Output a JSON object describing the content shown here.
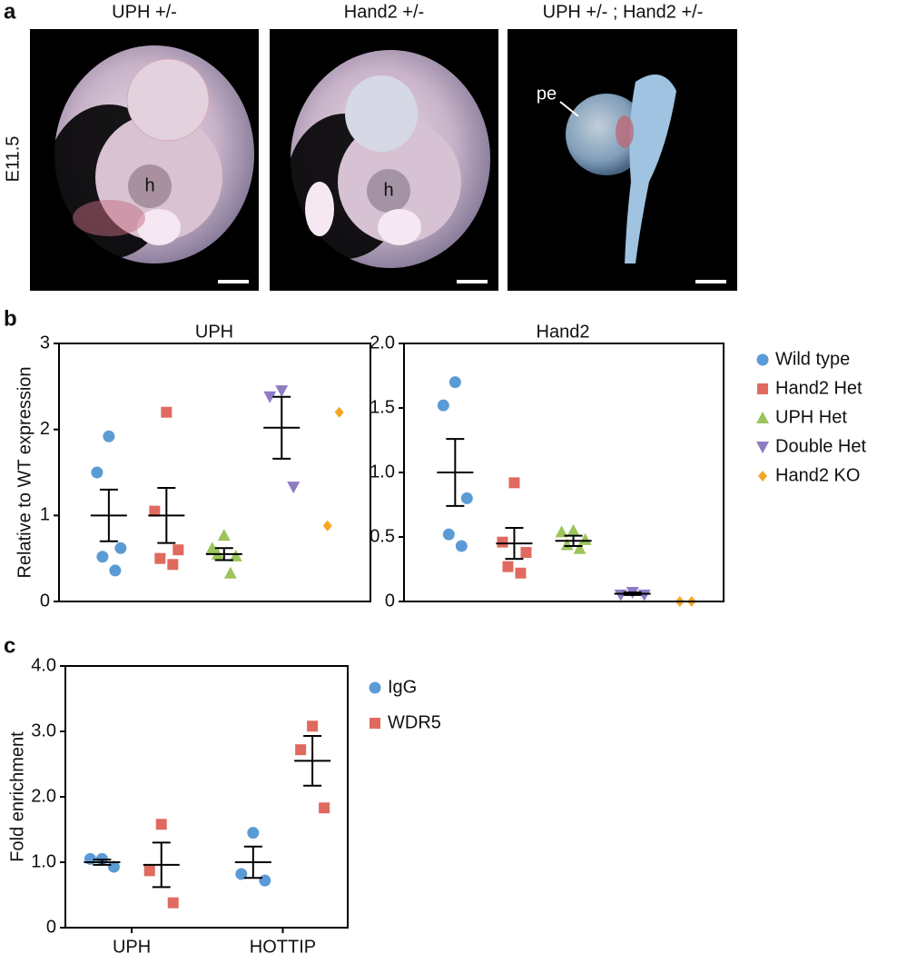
{
  "panel_labels": [
    "a",
    "b",
    "c"
  ],
  "panel_a": {
    "columns": [
      "UPH +/-",
      "Hand2 +/-",
      "UPH +/- ; Hand2 +/-"
    ],
    "row_label": "E11.5",
    "annotations": [
      "h",
      "h",
      "pe"
    ]
  },
  "chart_data": [
    {
      "type": "scatter",
      "title": "UPH",
      "y_label": "Relative to WT expression",
      "ylim": [
        0,
        3
      ],
      "yticks": [
        0,
        1,
        2,
        3
      ],
      "series": [
        {
          "color": "#5b9bd5",
          "marker": "circle",
          "values": [
            1.92,
            1.5,
            0.62,
            0.52,
            0.36
          ],
          "mean": 1.0,
          "error": 0.3
        },
        {
          "color": "#e06a5f",
          "marker": "square",
          "values": [
            2.2,
            1.05,
            0.6,
            0.5,
            0.43
          ],
          "mean": 1.0,
          "error": 0.32
        },
        {
          "color": "#9bc55a",
          "marker": "triangle",
          "values": [
            0.77,
            0.62,
            0.53,
            0.55,
            0.33
          ],
          "mean": 0.55,
          "error": 0.07
        },
        {
          "color": "#8e7cc3",
          "marker": "triangle-down",
          "values": [
            2.45,
            2.38,
            1.33
          ],
          "mean": 2.02,
          "error": 0.36
        },
        {
          "color": "#f5a623",
          "marker": "diamond",
          "values": [
            2.2,
            0.88
          ]
        }
      ]
    },
    {
      "type": "scatter",
      "title": "Hand2",
      "legend": "right",
      "ylim": [
        0,
        2
      ],
      "yticks": [
        0,
        0.5,
        {
          "value": 1,
          "label": "1.0"
        },
        1.5,
        {
          "value": 2,
          "label": "2.0"
        }
      ],
      "series": [
        {
          "name": "Wild type",
          "color": "#5b9bd5",
          "marker": "circle",
          "values": [
            1.7,
            1.52,
            0.8,
            0.52,
            0.43
          ],
          "mean": 1.0,
          "error": 0.26
        },
        {
          "name": "Hand2 Het",
          "color": "#e06a5f",
          "marker": "square",
          "values": [
            0.92,
            0.46,
            0.38,
            0.27,
            0.22
          ],
          "mean": 0.45,
          "error": 0.12
        },
        {
          "name": "UPH Het",
          "color": "#9bc55a",
          "marker": "triangle",
          "values": [
            0.55,
            0.54,
            0.48,
            0.44,
            0.41
          ],
          "mean": 0.47,
          "error": 0.04
        },
        {
          "name": "Double Het",
          "color": "#8e7cc3",
          "marker": "triangle-down",
          "values": [
            0.07,
            0.05,
            0.05
          ],
          "mean": 0.06,
          "error": 0.01
        },
        {
          "name": "Hand2 KO",
          "color": "#f5a623",
          "marker": "diamond",
          "values": [
            0,
            0
          ],
          "mean": 0,
          "error": 0
        }
      ]
    },
    {
      "type": "scatter",
      "y_label": "Fold enrichment",
      "legend": "right",
      "categories": [
        "UPH",
        "HOTTIP"
      ],
      "ylim": [
        0,
        4
      ],
      "yticks": [
        0,
        {
          "value": 1,
          "label": "1.0"
        },
        {
          "value": 2,
          "label": "2.0"
        },
        {
          "value": 3,
          "label": "3.0"
        },
        {
          "value": 4,
          "label": "4.0"
        }
      ],
      "series": [
        {
          "name": "IgG",
          "color": "#5b9bd5",
          "marker": "circle",
          "values": [
            [
              1.05,
              1.05,
              0.93
            ],
            [
              1.45,
              0.82,
              0.72
            ]
          ],
          "mean": [
            1.0,
            1.0
          ],
          "error": [
            0.04,
            0.24
          ]
        },
        {
          "name": "WDR5",
          "color": "#e06a5f",
          "marker": "square",
          "values": [
            [
              1.58,
              0.87,
              0.38
            ],
            [
              3.08,
              2.72,
              1.83
            ]
          ],
          "mean": [
            0.96,
            2.55
          ],
          "error": [
            0.34,
            0.38
          ]
        }
      ]
    }
  ]
}
